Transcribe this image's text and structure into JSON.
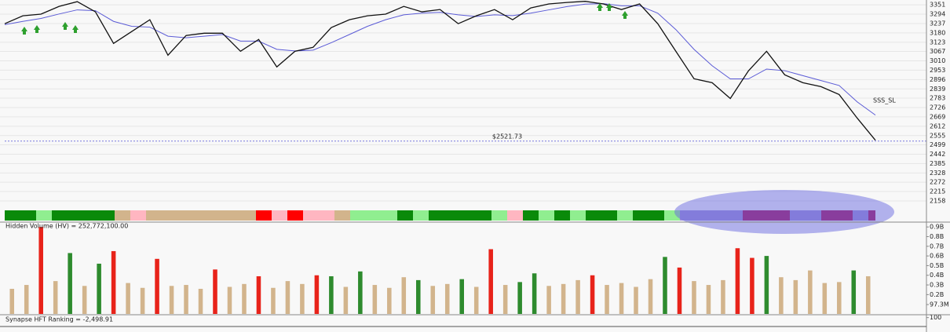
{
  "chart_data": [
    {
      "type": "line",
      "ylim": [
        2110,
        3380
      ],
      "yticks": [
        3351,
        3294,
        3237,
        3180,
        3123,
        3067,
        3010,
        2953,
        2896,
        2839,
        2783,
        2726,
        2669,
        2612,
        2555,
        2499,
        2442,
        2385,
        2328,
        2272,
        2215,
        2158
      ],
      "grid": true,
      "series": [
        {
          "color": "#111111",
          "values": [
            3236,
            3284,
            3294,
            3341,
            3370,
            3308,
            3116,
            3188,
            3260,
            3044,
            3164,
            3178,
            3178,
            3068,
            3140,
            2973,
            3068,
            3092,
            3212,
            3260,
            3284,
            3294,
            3341,
            3308,
            3322,
            3236,
            3284,
            3322,
            3260,
            3332,
            3356,
            3365,
            3372,
            3356,
            3322,
            3356,
            3236,
            3068,
            2901,
            2877,
            2781,
            2949,
            3068,
            2925,
            2877,
            2853,
            2805,
            2661,
            2527
          ]
        },
        {
          "color": "#5b5bd6",
          "values": [
            3230,
            3250,
            3268,
            3295,
            3320,
            3315,
            3250,
            3220,
            3215,
            3160,
            3150,
            3160,
            3170,
            3130,
            3130,
            3080,
            3070,
            3075,
            3120,
            3170,
            3220,
            3260,
            3290,
            3300,
            3305,
            3290,
            3280,
            3290,
            3285,
            3300,
            3320,
            3340,
            3355,
            3358,
            3345,
            3345,
            3300,
            3200,
            3080,
            2980,
            2900,
            2900,
            2960,
            2950,
            2920,
            2890,
            2860,
            2760,
            2680
          ]
        }
      ],
      "reference_line": {
        "value": 2521.73,
        "label": "$2521.73"
      },
      "annotation": "SSS_SL"
    },
    {
      "type": "band",
      "colors": [
        "#0a8a0a",
        "#0a8a0a",
        "#90ee90",
        "#0a8a0a",
        "#0a8a0a",
        "#0a8a0a",
        "#0a8a0a",
        "#d2b48c",
        "#ffb6c1",
        "#d2b48c",
        "#d2b48c",
        "#d2b48c",
        "#d2b48c",
        "#d2b48c",
        "#d2b48c",
        "#d2b48c",
        "#ff0000",
        "#ffb6c1",
        "#ff0000",
        "#ffb6c1",
        "#ffb6c1",
        "#d2b48c",
        "#90ee90",
        "#90ee90",
        "#90ee90",
        "#0a8a0a",
        "#90ee90",
        "#0a8a0a",
        "#0a8a0a",
        "#0a8a0a",
        "#0a8a0a",
        "#90ee90",
        "#ffb6c1",
        "#0a8a0a",
        "#90ee90",
        "#0a8a0a",
        "#90ee90",
        "#0a8a0a",
        "#0a8a0a",
        "#90ee90",
        "#0a8a0a",
        "#0a8a0a",
        "#90ee90",
        "#9d8fd6",
        "#9d8fd6",
        "#9d8fd6",
        "#9d8fd6",
        "#a8105a",
        "#a8105a",
        "#a8105a",
        "#9d8fd6",
        "#9d8fd6",
        "#a8105a",
        "#a8105a",
        "#9d8fd6",
        "#a8105a"
      ]
    },
    {
      "type": "bar",
      "title": "Hidden Volume (HV) = 252,772,100.00",
      "ylim": [
        0,
        950000000
      ],
      "yticks": [
        {
          "value": 900000000,
          "label": "0.9B"
        },
        {
          "value": 800000000,
          "label": "0.8B"
        },
        {
          "value": 700000000,
          "label": "0.7B"
        },
        {
          "value": 600000000,
          "label": "0.6B"
        },
        {
          "value": 500000000,
          "label": "0.5B"
        },
        {
          "value": 400000000,
          "label": "0.4B"
        },
        {
          "value": 300000000,
          "label": "0.3B"
        },
        {
          "value": 200000000,
          "label": "0.2B"
        },
        {
          "value": 97300000,
          "label": "97.3M"
        }
      ],
      "values": [
        260000000,
        300000000,
        900000000,
        340000000,
        630000000,
        290000000,
        520000000,
        650000000,
        320000000,
        270000000,
        570000000,
        290000000,
        300000000,
        260000000,
        460000000,
        280000000,
        310000000,
        390000000,
        270000000,
        340000000,
        310000000,
        400000000,
        390000000,
        280000000,
        440000000,
        300000000,
        270000000,
        380000000,
        350000000,
        290000000,
        310000000,
        360000000,
        280000000,
        670000000,
        300000000,
        330000000,
        420000000,
        290000000,
        310000000,
        350000000,
        400000000,
        300000000,
        320000000,
        280000000,
        360000000,
        590000000,
        480000000,
        340000000,
        300000000,
        350000000,
        680000000,
        580000000,
        600000000,
        380000000,
        350000000,
        450000000,
        320000000,
        330000000,
        450000000,
        390000000
      ],
      "colors": [
        "#d2b48c",
        "#d2b48c",
        "#e8231a",
        "#d2b48c",
        "#2e8b2e",
        "#d2b48c",
        "#2e8b2e",
        "#e8231a",
        "#d2b48c",
        "#d2b48c",
        "#e8231a",
        "#d2b48c",
        "#d2b48c",
        "#d2b48c",
        "#e8231a",
        "#d2b48c",
        "#d2b48c",
        "#e8231a",
        "#d2b48c",
        "#d2b48c",
        "#d2b48c",
        "#e8231a",
        "#2e8b2e",
        "#d2b48c",
        "#2e8b2e",
        "#d2b48c",
        "#d2b48c",
        "#d2b48c",
        "#2e8b2e",
        "#d2b48c",
        "#d2b48c",
        "#2e8b2e",
        "#d2b48c",
        "#e8231a",
        "#d2b48c",
        "#2e8b2e",
        "#2e8b2e",
        "#d2b48c",
        "#d2b48c",
        "#d2b48c",
        "#e8231a",
        "#d2b48c",
        "#d2b48c",
        "#d2b48c",
        "#d2b48c",
        "#2e8b2e",
        "#e8231a",
        "#d2b48c",
        "#d2b48c",
        "#d2b48c",
        "#e8231a",
        "#e8231a",
        "#2e8b2e",
        "#d2b48c",
        "#d2b48c",
        "#d2b48c",
        "#d2b48c",
        "#d2b48c",
        "#2e8b2e",
        "#d2b48c"
      ]
    },
    {
      "type": "panel",
      "title": "Synapse HFT Ranking = -2,498.91",
      "yticks": [
        100
      ],
      "ylim": [
        0,
        120
      ]
    }
  ]
}
